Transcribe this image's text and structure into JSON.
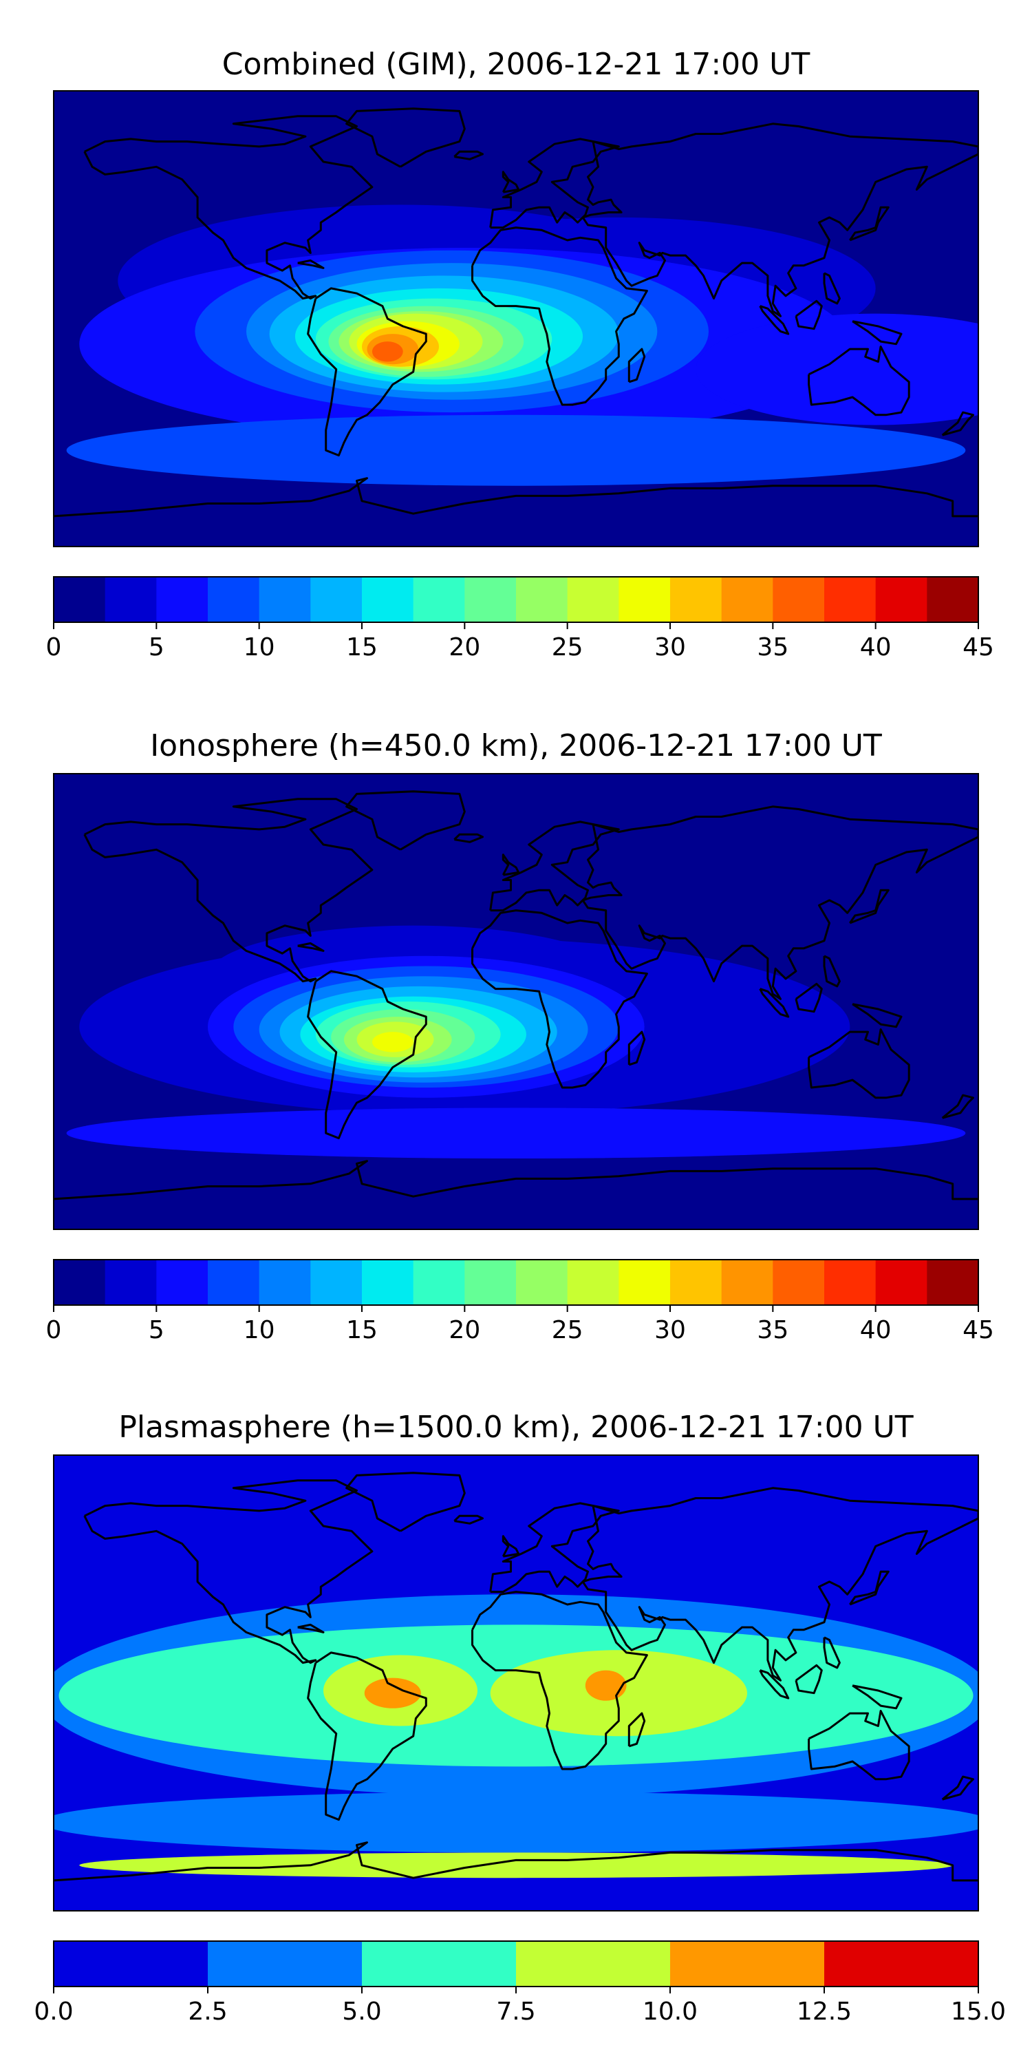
{
  "colors": {
    "jet18": [
      "#00008f",
      "#0000d0",
      "#0b0bff",
      "#0047ff",
      "#007fff",
      "#00b4ff",
      "#00ebf0",
      "#32ffc5",
      "#64ff96",
      "#96ff64",
      "#c8ff32",
      "#f0ff00",
      "#ffc400",
      "#ff9400",
      "#ff5f00",
      "#ff2e00",
      "#e30000",
      "#9b0000"
    ],
    "jet6": [
      "#0000e0",
      "#0078ff",
      "#32ffc5",
      "#c3ff34",
      "#ff9800",
      "#e00000"
    ],
    "coast": "#000000"
  },
  "chart_data": [
    {
      "type": "heatmap",
      "title": "Combined (GIM), 2006-12-21 17:00 UT",
      "xlabel": "",
      "ylabel": "",
      "colorbar": {
        "levels": [
          0,
          2.5,
          5,
          7.5,
          10,
          12.5,
          15,
          17.5,
          20,
          22.5,
          25,
          27.5,
          30,
          32.5,
          35,
          37.5,
          40,
          42.5,
          45
        ],
        "tick_labels": [
          "0",
          "5",
          "10",
          "15",
          "20",
          "25",
          "30",
          "35",
          "40",
          "45"
        ]
      },
      "max_region": "South America, approx. 35-40"
    },
    {
      "type": "heatmap",
      "title": "Ionosphere  (h=450.0 km), 2006-12-21 17:00 UT",
      "xlabel": "",
      "ylabel": "",
      "colorbar": {
        "levels": [
          0,
          2.5,
          5,
          7.5,
          10,
          12.5,
          15,
          17.5,
          20,
          22.5,
          25,
          27.5,
          30,
          32.5,
          35,
          37.5,
          40,
          42.5,
          45
        ],
        "tick_labels": [
          "0",
          "5",
          "10",
          "15",
          "20",
          "25",
          "30",
          "35",
          "40",
          "45"
        ]
      },
      "max_region": "Southern Brazil, approx. 30-35"
    },
    {
      "type": "heatmap",
      "title": "Plasmasphere (h=1500.0 km), 2006-12-21 17:00 UT",
      "xlabel": "",
      "ylabel": "",
      "colorbar": {
        "levels": [
          0,
          2.5,
          5,
          7.5,
          10,
          12.5,
          15
        ],
        "tick_labels": [
          "0.0",
          "2.5",
          "5.0",
          "7.5",
          "10.0",
          "12.5",
          "15.0"
        ]
      },
      "max_region": "Brazil and East Africa, approx. 10-12.5"
    }
  ]
}
